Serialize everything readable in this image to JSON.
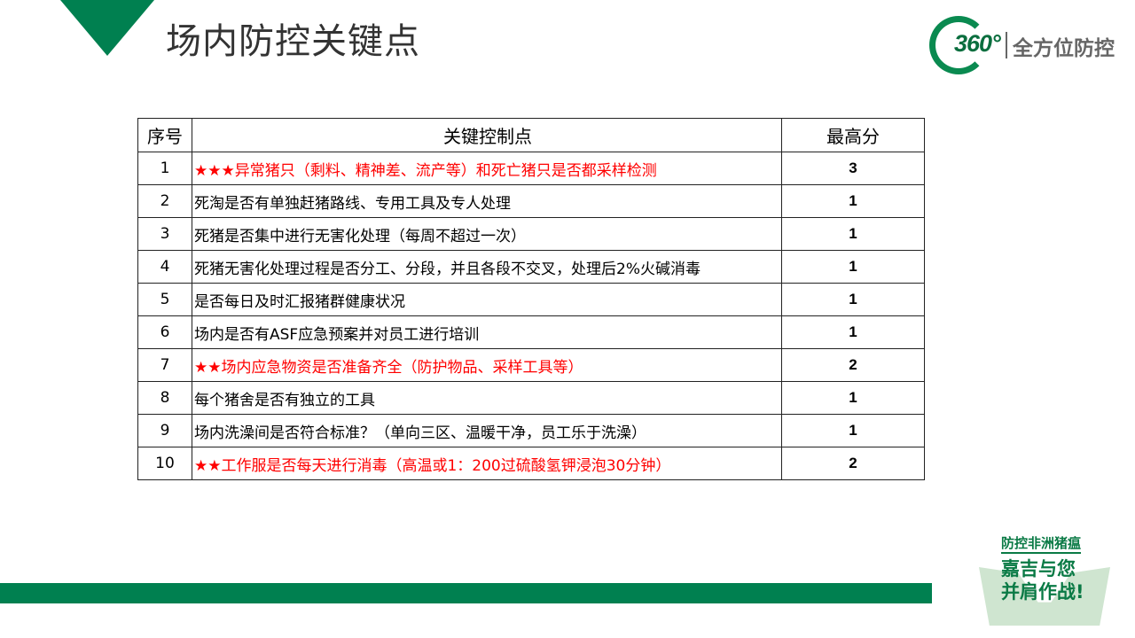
{
  "title": "场内防控关键点",
  "logo": {
    "number": "360°",
    "text": "全方位防控"
  },
  "table": {
    "headers": [
      "序号",
      "关键控制点",
      "最高分"
    ],
    "rows": [
      {
        "no": "1",
        "item": "★★★异常猪只（剩料、精神差、流产等）和死亡猪只是否都采样检测",
        "score": "3",
        "highlight": true
      },
      {
        "no": "2",
        "item": "死淘是否有单独赶猪路线、专用工具及专人处理",
        "score": "1",
        "highlight": false
      },
      {
        "no": "3",
        "item": "死猪是否集中进行无害化处理（每周不超过一次）",
        "score": "1",
        "highlight": false
      },
      {
        "no": "4",
        "item": "死猪无害化处理过程是否分工、分段，并且各段不交叉，处理后2%火碱消毒",
        "score": "1",
        "highlight": false
      },
      {
        "no": "5",
        "item": "是否每日及时汇报猪群健康状况",
        "score": "1",
        "highlight": false
      },
      {
        "no": "6",
        "item": "场内是否有ASF应急预案并对员工进行培训",
        "score": "1",
        "highlight": false
      },
      {
        "no": "7",
        "item": "★★场内应急物资是否准备齐全（防护物品、采样工具等）",
        "score": "2",
        "highlight": true
      },
      {
        "no": "8",
        "item": "每个猪舍是否有独立的工具",
        "score": "1",
        "highlight": false
      },
      {
        "no": "9",
        "item": "场内洗澡间是否符合标准？（单向三区、温暖干净，员工乐于洗澡）",
        "score": "1",
        "highlight": false
      },
      {
        "no": "10",
        "item": "★★工作服是否每天进行消毒（高温或1：200过硫酸氢钾浸泡30分钟）",
        "score": "2",
        "highlight": true
      }
    ]
  },
  "badge": {
    "line1": "防控非洲猪瘟",
    "line2": "嘉吉与您",
    "line3": "并肩作战!"
  },
  "colors": {
    "brand_green": "#008050",
    "highlight_red": "#ff0000"
  }
}
